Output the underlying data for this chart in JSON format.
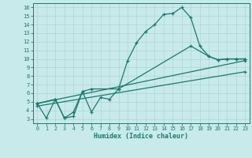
{
  "bg_color": "#c8eaea",
  "grid_color": "#b0d4d4",
  "line_color": "#1a7a6e",
  "xlabel": "Humidex (Indice chaleur)",
  "xlim": [
    -0.5,
    23.5
  ],
  "ylim": [
    2.5,
    16.5
  ],
  "yticks": [
    3,
    4,
    5,
    6,
    7,
    8,
    9,
    10,
    11,
    12,
    13,
    14,
    15,
    16
  ],
  "xticks": [
    0,
    1,
    2,
    3,
    4,
    5,
    6,
    7,
    8,
    9,
    10,
    11,
    12,
    13,
    14,
    15,
    16,
    17,
    18,
    19,
    20,
    21,
    22,
    23
  ],
  "line1_x": [
    0,
    1,
    2,
    3,
    4,
    5,
    6,
    7,
    8,
    9,
    10,
    11,
    12,
    13,
    14,
    15,
    16,
    17,
    18,
    19,
    20,
    21,
    22,
    23
  ],
  "line1_y": [
    4.8,
    3.1,
    5.3,
    3.1,
    3.3,
    6.2,
    3.8,
    5.5,
    5.3,
    6.5,
    9.8,
    11.9,
    13.2,
    14.0,
    15.2,
    15.3,
    16.0,
    14.8,
    11.5,
    10.3,
    9.9,
    10.0,
    10.0,
    10.0
  ],
  "line2_x": [
    0,
    2,
    3,
    4,
    5,
    6,
    9,
    17,
    19,
    20,
    21,
    22,
    23
  ],
  "line2_y": [
    4.8,
    5.3,
    3.1,
    3.8,
    6.2,
    6.5,
    6.5,
    11.5,
    10.3,
    9.9,
    10.0,
    10.0,
    10.0
  ],
  "line3_x": [
    0,
    23
  ],
  "line3_y": [
    4.8,
    9.8
  ],
  "line4_x": [
    0,
    23
  ],
  "line4_y": [
    4.5,
    8.5
  ]
}
